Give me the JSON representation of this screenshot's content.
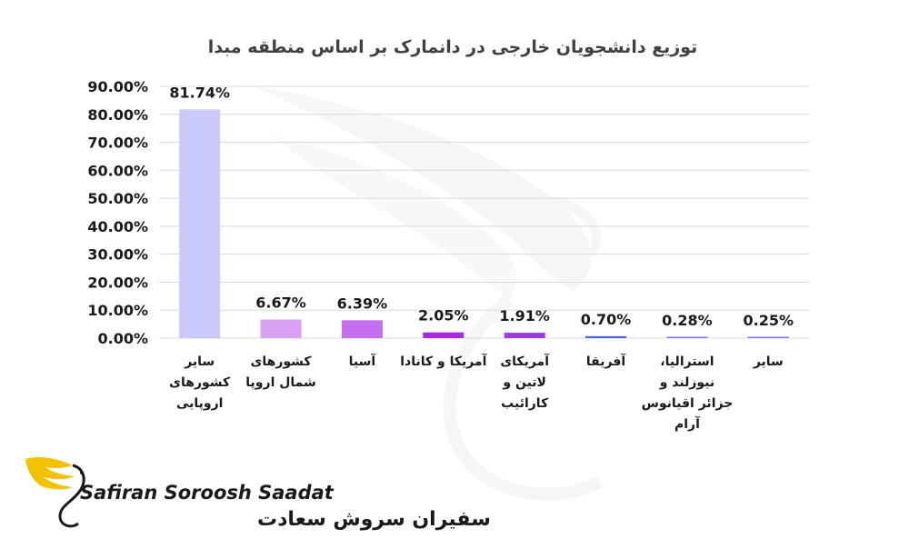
{
  "chart_data": {
    "type": "bar",
    "title": "توزیع دانشجویان خارجی در دانمارک بر اساس منطقه مبدا",
    "xlabel": "",
    "ylabel": "",
    "ylim": [
      0,
      90
    ],
    "yticks": [
      "0.00%",
      "10.00%",
      "20.00%",
      "30.00%",
      "40.00%",
      "50.00%",
      "60.00%",
      "70.00%",
      "80.00%",
      "90.00%"
    ],
    "grid": true,
    "categories": [
      [
        "سایر",
        "کشورهای",
        "اروپایی"
      ],
      [
        "کشورهای",
        "شمال اروپا"
      ],
      [
        "آسیا"
      ],
      [
        "آمریکا و کانادا"
      ],
      [
        "آمریکای",
        "لاتین و",
        "کارائیب"
      ],
      [
        "آفریقا"
      ],
      [
        "استرالیا،",
        "نیوزلند و",
        "جزائر اقیانوس",
        "آرام"
      ],
      [
        "سایر"
      ]
    ],
    "values": [
      81.74,
      6.67,
      6.39,
      2.05,
      1.91,
      0.7,
      0.28,
      0.25
    ],
    "data_labels": [
      "81.74%",
      "6.67%",
      "6.39%",
      "2.05%",
      "1.91%",
      "0.70%",
      "0.28%",
      "0.25%"
    ],
    "colors": [
      "#c9c9fb",
      "#d9a1f3",
      "#c46ef0",
      "#a72ae3",
      "#9b3be0",
      "#4a66d6",
      "#7a7aff",
      "#7a7aff"
    ]
  },
  "logo": {
    "name_en": "Safiran Soroosh Saadat",
    "name_fa": "سفیران سروش سعادت",
    "accent_color": "#f2c200"
  }
}
